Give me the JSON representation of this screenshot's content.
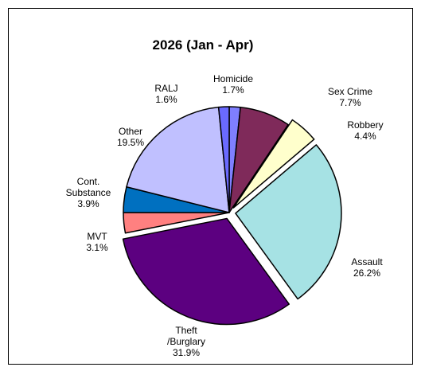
{
  "chart_data": {
    "type": "pie",
    "title": "2026 (Jan - Apr)",
    "slices": [
      {
        "name": "Homicide",
        "label_lines": [
          "Homicide"
        ],
        "value": 1.7,
        "value_label": "1.7%",
        "color": "#7f7fff",
        "exploded": false
      },
      {
        "name": "Sex Crime",
        "label_lines": [
          "Sex Crime"
        ],
        "value": 7.7,
        "value_label": "7.7%",
        "color": "#7f2a5a",
        "exploded": false
      },
      {
        "name": "Robbery",
        "label_lines": [
          "Robbery"
        ],
        "value": 4.4,
        "value_label": "4.4%",
        "color": "#ffffcc",
        "exploded": true
      },
      {
        "name": "Assault",
        "label_lines": [
          "Assault"
        ],
        "value": 26.2,
        "value_label": "26.2%",
        "color": "#a6e2e4",
        "exploded": true
      },
      {
        "name": "Theft /Burglary",
        "label_lines": [
          "Theft",
          "/Burglary"
        ],
        "value": 31.9,
        "value_label": "31.9%",
        "color": "#5c0080",
        "exploded": true
      },
      {
        "name": "MVT",
        "label_lines": [
          "MVT"
        ],
        "value": 3.1,
        "value_label": "3.1%",
        "color": "#ff8080",
        "exploded": false
      },
      {
        "name": "Cont. Substance",
        "label_lines": [
          "Cont.",
          "Substance"
        ],
        "value": 3.9,
        "value_label": "3.9%",
        "color": "#0070c0",
        "exploded": false
      },
      {
        "name": "Other",
        "label_lines": [
          "Other"
        ],
        "value": 19.5,
        "value_label": "19.5%",
        "color": "#c0c0ff",
        "exploded": false
      },
      {
        "name": "RALJ",
        "label_lines": [
          "RALJ"
        ],
        "value": 1.6,
        "value_label": "1.6%",
        "color": "#6a6aff",
        "exploded": false
      }
    ]
  }
}
